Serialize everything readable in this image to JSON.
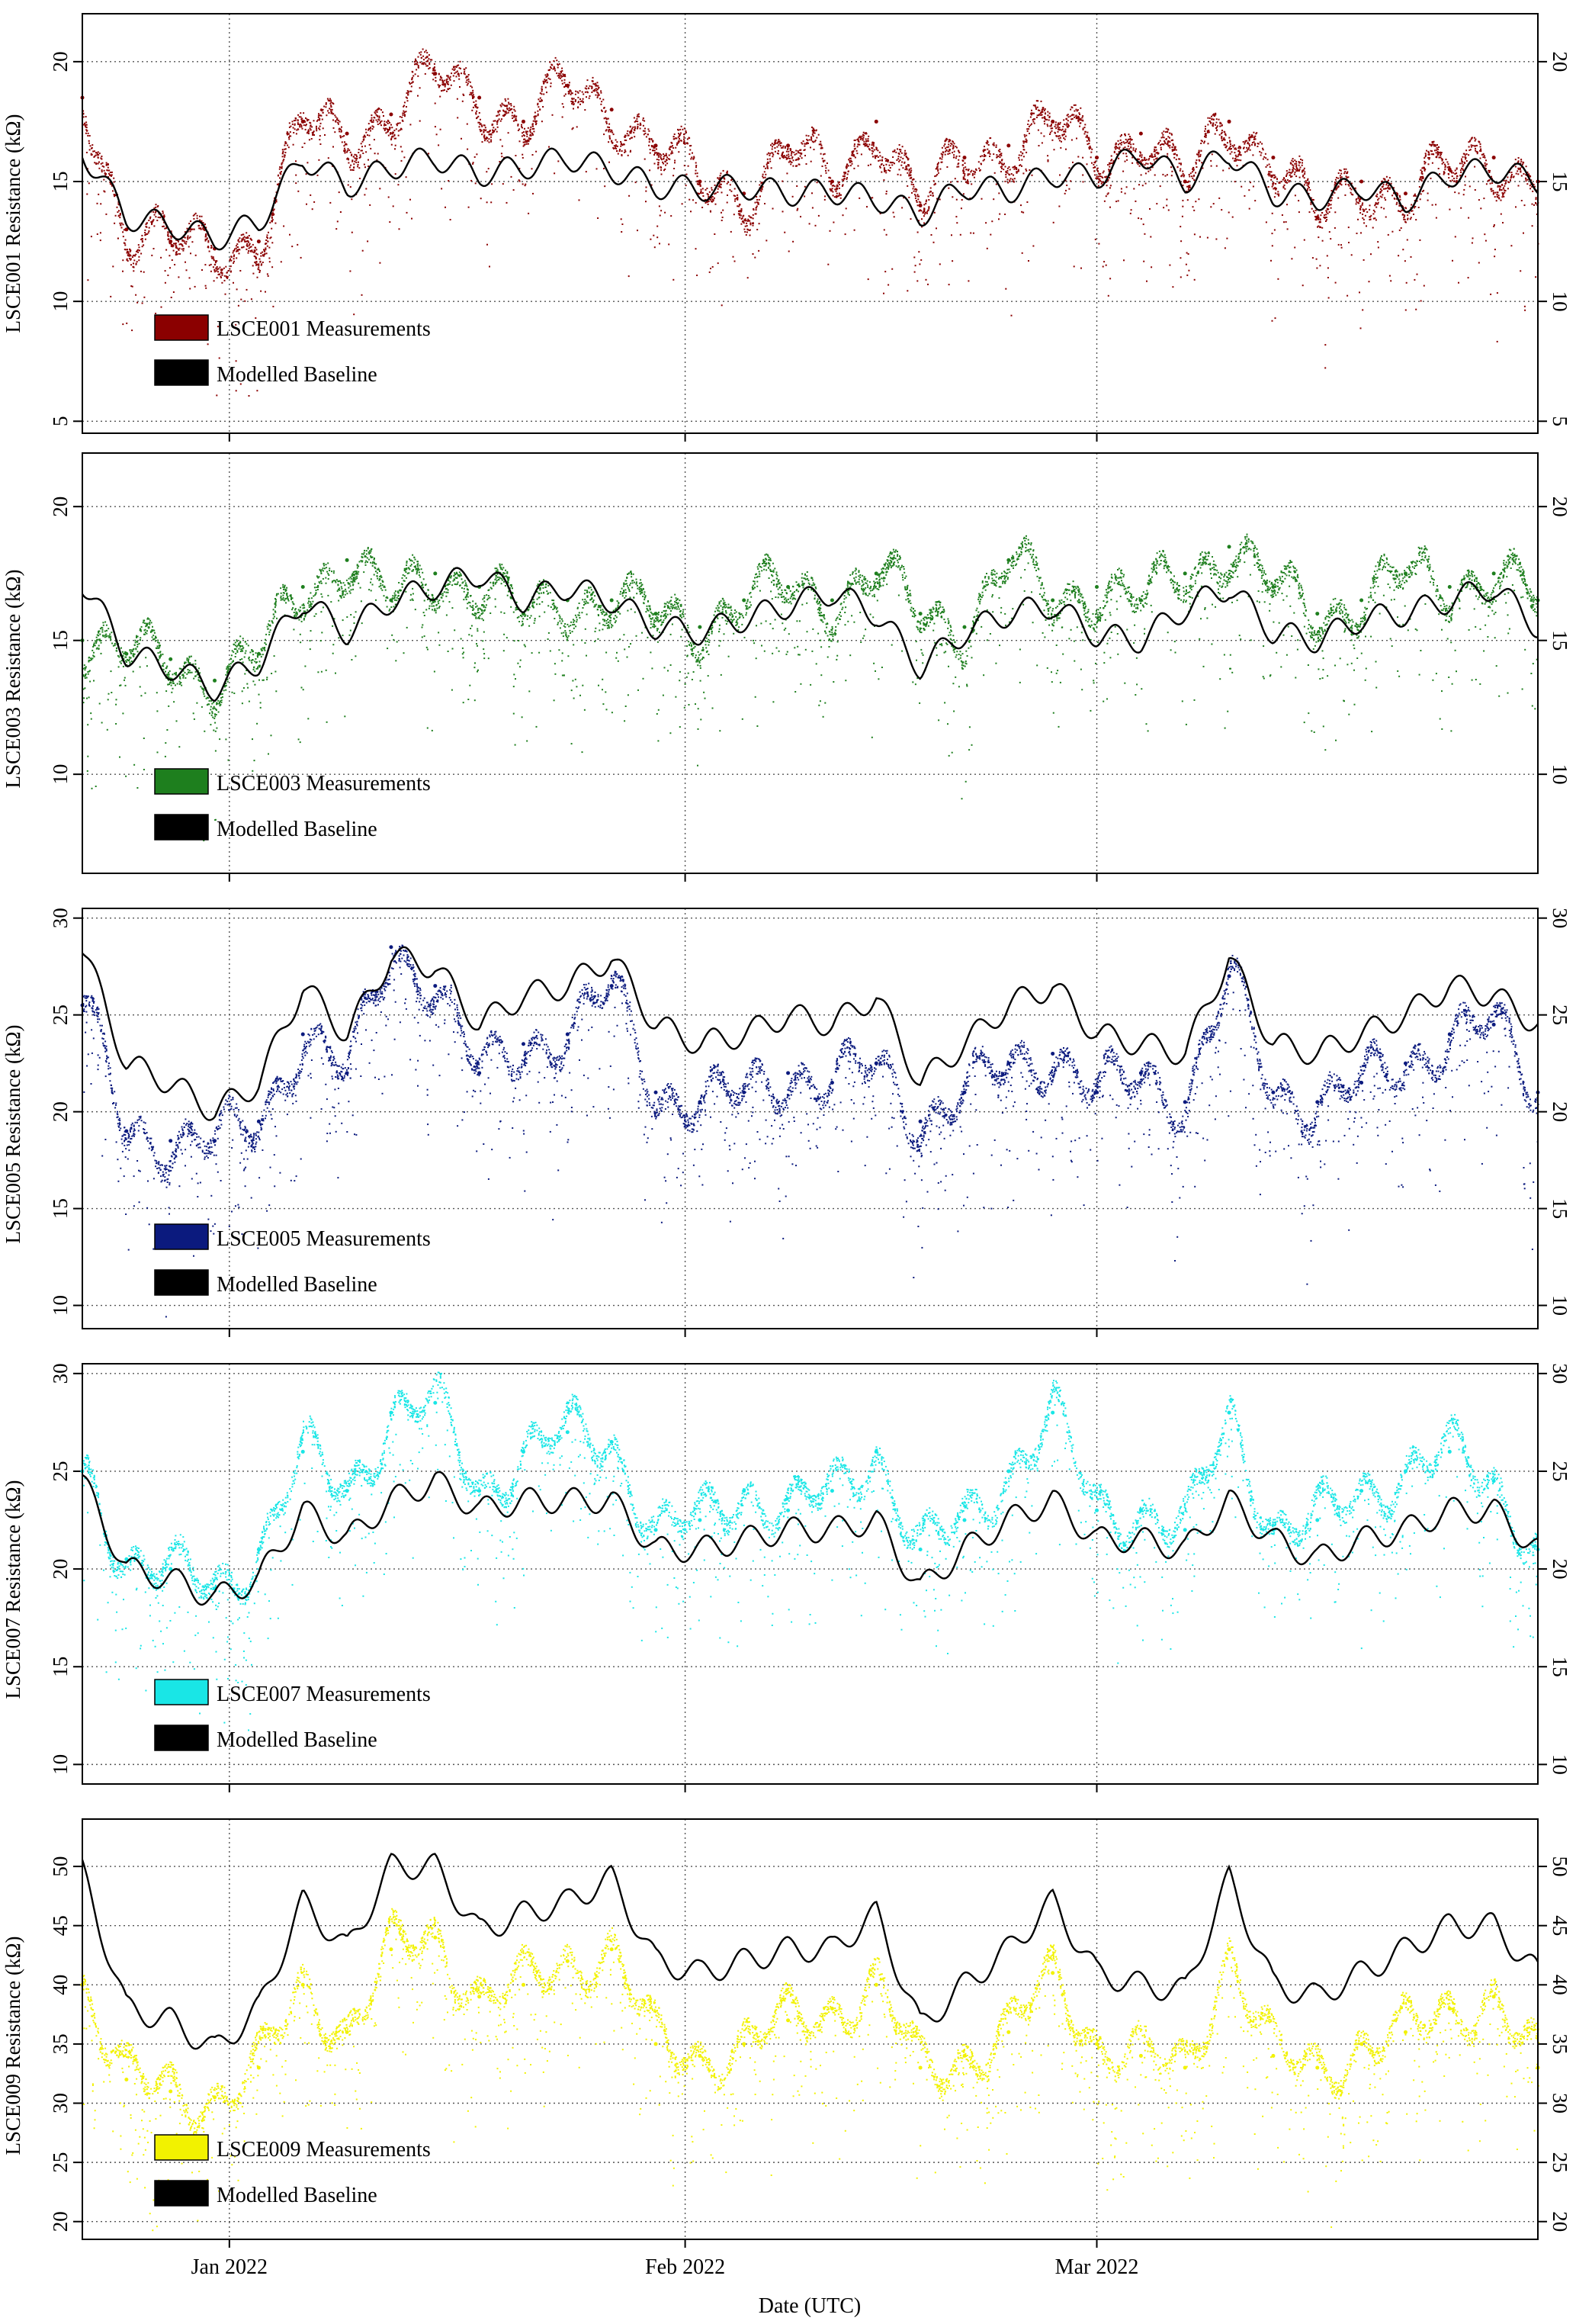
{
  "figure": {
    "xlabel": "Date (UTC)"
  },
  "chart_data": [
    {
      "type": "line",
      "id": "p1",
      "ylabel": "LSCE001 Resistance (kΩ)",
      "ylim": [
        4.5,
        22
      ],
      "yticks": [
        5,
        10,
        15,
        20
      ],
      "xlim": [
        "2021-12-22",
        "2022-03-31"
      ],
      "xticks": [
        "2022-01-01",
        "2022-02-01",
        "2022-03-01"
      ],
      "xtick_labels": [
        "Jan 2022",
        "Feb 2022",
        "Mar 2022"
      ],
      "grid": true,
      "legend_position": "bottom-left",
      "series": [
        {
          "name": "LSCE001 Measurements",
          "color": "#8B0000",
          "style": "points",
          "x": [
            "2021-12-22",
            "2021-12-25",
            "2021-12-28",
            "2021-12-31",
            "2022-01-03",
            "2022-01-06",
            "2022-01-09",
            "2022-01-12",
            "2022-01-15",
            "2022-01-18",
            "2022-01-21",
            "2022-01-24",
            "2022-01-27",
            "2022-01-30",
            "2022-02-02",
            "2022-02-05",
            "2022-02-08",
            "2022-02-11",
            "2022-02-14",
            "2022-02-17",
            "2022-02-20",
            "2022-02-23",
            "2022-02-26",
            "2022-03-01",
            "2022-03-04",
            "2022-03-07",
            "2022-03-10",
            "2022-03-13",
            "2022-03-16",
            "2022-03-19",
            "2022-03-22",
            "2022-03-25",
            "2022-03-28",
            "2022-03-31"
          ],
          "y": [
            18.5,
            13,
            12.5,
            12.2,
            12.5,
            17.5,
            17,
            17.8,
            19.5,
            18.5,
            17.5,
            19,
            18,
            16.5,
            15,
            14.5,
            16.5,
            15,
            17.5,
            14,
            16,
            16.5,
            17.5,
            16,
            17,
            15,
            17.5,
            16,
            13.5,
            15,
            14.5,
            15.5,
            16,
            15
          ]
        },
        {
          "name": "Modelled Baseline",
          "color": "#000000",
          "style": "line",
          "x": [
            "2021-12-22",
            "2021-12-25",
            "2021-12-28",
            "2021-12-31",
            "2022-01-03",
            "2022-01-06",
            "2022-01-09",
            "2022-01-12",
            "2022-01-15",
            "2022-01-18",
            "2022-01-21",
            "2022-01-24",
            "2022-01-27",
            "2022-01-30",
            "2022-02-02",
            "2022-02-05",
            "2022-02-08",
            "2022-02-11",
            "2022-02-14",
            "2022-02-17",
            "2022-02-20",
            "2022-02-23",
            "2022-02-26",
            "2022-03-01",
            "2022-03-04",
            "2022-03-07",
            "2022-03-10",
            "2022-03-13",
            "2022-03-16",
            "2022-03-19",
            "2022-03-22",
            "2022-03-25",
            "2022-03-28",
            "2022-03-31"
          ],
          "y": [
            16.3,
            13.5,
            13.2,
            12.6,
            13.3,
            16,
            14.8,
            15.6,
            16,
            15.3,
            15.6,
            16,
            15.5,
            14.8,
            14.7,
            14.8,
            14.5,
            14.6,
            14.3,
            13.6,
            14.8,
            14.6,
            15.3,
            15.2,
            16.2,
            15,
            16.2,
            14.5,
            14.3,
            14.8,
            14.2,
            15.3,
            15.5,
            15
          ]
        }
      ]
    },
    {
      "type": "line",
      "id": "p2",
      "ylabel": "LSCE003 Resistance (kΩ)",
      "ylim": [
        6.3,
        22
      ],
      "yticks": [
        10,
        15,
        20
      ],
      "xlim": [
        "2021-12-22",
        "2022-03-31"
      ],
      "xticks": [
        "2022-01-01",
        "2022-02-01",
        "2022-03-01"
      ],
      "xtick_labels": [
        "Jan 2022",
        "Feb 2022",
        "Mar 2022"
      ],
      "grid": true,
      "legend_position": "bottom-left",
      "series": [
        {
          "name": "LSCE003 Measurements",
          "color": "#1E7F1E",
          "style": "points",
          "x": [
            "2021-12-22",
            "2021-12-25",
            "2021-12-28",
            "2021-12-31",
            "2022-01-03",
            "2022-01-06",
            "2022-01-09",
            "2022-01-12",
            "2022-01-15",
            "2022-01-18",
            "2022-01-21",
            "2022-01-24",
            "2022-01-27",
            "2022-01-30",
            "2022-02-02",
            "2022-02-05",
            "2022-02-08",
            "2022-02-11",
            "2022-02-14",
            "2022-02-17",
            "2022-02-20",
            "2022-02-23",
            "2022-02-26",
            "2022-03-01",
            "2022-03-04",
            "2022-03-07",
            "2022-03-10",
            "2022-03-13",
            "2022-03-16",
            "2022-03-19",
            "2022-03-22",
            "2022-03-25",
            "2022-03-28",
            "2022-03-31"
          ],
          "y": [
            15,
            14.5,
            14.3,
            13.5,
            14.5,
            17,
            18,
            16.5,
            17.5,
            17,
            16,
            16.5,
            16.5,
            16,
            15.5,
            16.5,
            17,
            16.5,
            17.5,
            16,
            15.5,
            18,
            16.5,
            17,
            16.5,
            17.5,
            18.5,
            17,
            16,
            16.5,
            17.5,
            17,
            17.5,
            16.5
          ]
        },
        {
          "name": "Modelled Baseline",
          "color": "#000000",
          "style": "line",
          "x": [
            "2021-12-22",
            "2021-12-25",
            "2021-12-28",
            "2021-12-31",
            "2022-01-03",
            "2022-01-06",
            "2022-01-09",
            "2022-01-12",
            "2022-01-15",
            "2022-01-18",
            "2022-01-21",
            "2022-01-24",
            "2022-01-27",
            "2022-01-30",
            "2022-02-02",
            "2022-02-05",
            "2022-02-08",
            "2022-02-11",
            "2022-02-14",
            "2022-02-17",
            "2022-02-20",
            "2022-02-23",
            "2022-02-26",
            "2022-03-01",
            "2022-03-04",
            "2022-03-07",
            "2022-03-10",
            "2022-03-13",
            "2022-03-16",
            "2022-03-19",
            "2022-03-22",
            "2022-03-25",
            "2022-03-28",
            "2022-03-31"
          ],
          "y": [
            17.2,
            14.5,
            14,
            13.2,
            14.2,
            16.5,
            15.3,
            16.5,
            17,
            17.5,
            16.5,
            17,
            16.5,
            15.5,
            15.3,
            15.8,
            16.3,
            16.8,
            16,
            14,
            15.3,
            16,
            16.3,
            15.2,
            15,
            16.2,
            17,
            15.3,
            15,
            15.8,
            16,
            16.5,
            17,
            15.5
          ]
        }
      ]
    },
    {
      "type": "line",
      "id": "p3",
      "ylabel": "LSCE005 Resistance (kΩ)",
      "ylim": [
        8.8,
        30.5
      ],
      "yticks": [
        10,
        15,
        20,
        25,
        30
      ],
      "xlim": [
        "2021-12-22",
        "2022-03-31"
      ],
      "xticks": [
        "2022-01-01",
        "2022-02-01",
        "2022-03-01"
      ],
      "xtick_labels": [
        "Jan 2022",
        "Feb 2022",
        "Mar 2022"
      ],
      "grid": true,
      "legend_position": "bottom-left",
      "series": [
        {
          "name": "LSCE005 Measurements",
          "color": "#0B1A7E",
          "style": "points",
          "x": [
            "2021-12-22",
            "2021-12-25",
            "2021-12-28",
            "2021-12-31",
            "2022-01-03",
            "2022-01-06",
            "2022-01-09",
            "2022-01-12",
            "2022-01-15",
            "2022-01-18",
            "2022-01-21",
            "2022-01-24",
            "2022-01-27",
            "2022-01-30",
            "2022-02-02",
            "2022-02-05",
            "2022-02-08",
            "2022-02-11",
            "2022-02-14",
            "2022-02-17",
            "2022-02-20",
            "2022-02-23",
            "2022-02-26",
            "2022-03-01",
            "2022-03-04",
            "2022-03-07",
            "2022-03-10",
            "2022-03-13",
            "2022-03-16",
            "2022-03-19",
            "2022-03-22",
            "2022-03-25",
            "2022-03-28",
            "2022-03-31"
          ],
          "y": [
            25.5,
            19,
            18.5,
            18.5,
            19.5,
            24,
            22,
            28.5,
            26.5,
            22,
            23.5,
            24,
            26.5,
            21,
            20.5,
            21,
            22,
            21.5,
            22.5,
            19.5,
            21,
            22.5,
            23,
            21,
            22,
            20.5,
            27,
            21,
            20.5,
            21.5,
            22.5,
            24,
            24.5,
            21
          ]
        },
        {
          "name": "Modelled Baseline",
          "color": "#000000",
          "style": "line",
          "x": [
            "2021-12-22",
            "2021-12-25",
            "2021-12-28",
            "2021-12-31",
            "2022-01-03",
            "2022-01-06",
            "2022-01-09",
            "2022-01-12",
            "2022-01-15",
            "2022-01-18",
            "2022-01-21",
            "2022-01-24",
            "2022-01-27",
            "2022-01-30",
            "2022-02-02",
            "2022-02-05",
            "2022-02-08",
            "2022-02-11",
            "2022-02-14",
            "2022-02-17",
            "2022-02-20",
            "2022-02-23",
            "2022-02-26",
            "2022-03-01",
            "2022-03-04",
            "2022-03-07",
            "2022-03-10",
            "2022-03-13",
            "2022-03-16",
            "2022-03-19",
            "2022-03-22",
            "2022-03-25",
            "2022-03-28",
            "2022-03-31"
          ],
          "y": [
            28.5,
            22.5,
            21.5,
            20,
            21.5,
            26.5,
            24,
            28,
            27.5,
            24.5,
            26,
            26.5,
            28,
            24.5,
            23.5,
            24,
            25,
            24.5,
            26,
            21.5,
            23.5,
            25.5,
            26.5,
            24,
            23.5,
            23,
            28,
            23.5,
            23,
            24,
            25,
            26.5,
            26,
            24.5
          ]
        }
      ]
    },
    {
      "type": "line",
      "id": "p4",
      "ylabel": "LSCE007 Resistance (kΩ)",
      "ylim": [
        9,
        30.5
      ],
      "yticks": [
        10,
        15,
        20,
        25,
        30
      ],
      "xlim": [
        "2021-12-22",
        "2022-03-31"
      ],
      "xticks": [
        "2022-01-01",
        "2022-02-01",
        "2022-03-01"
      ],
      "xtick_labels": [
        "Jan 2022",
        "Feb 2022",
        "Mar 2022"
      ],
      "grid": true,
      "legend_position": "bottom-left",
      "series": [
        {
          "name": "LSCE007 Measurements",
          "color": "#19E6E6",
          "style": "points",
          "x": [
            "2021-12-22",
            "2021-12-25",
            "2021-12-28",
            "2021-12-31",
            "2022-01-03",
            "2022-01-06",
            "2022-01-09",
            "2022-01-12",
            "2022-01-15",
            "2022-01-18",
            "2022-01-21",
            "2022-01-24",
            "2022-01-27",
            "2022-01-30",
            "2022-02-02",
            "2022-02-05",
            "2022-02-08",
            "2022-02-11",
            "2022-02-14",
            "2022-02-17",
            "2022-02-20",
            "2022-02-23",
            "2022-02-26",
            "2022-03-01",
            "2022-03-04",
            "2022-03-07",
            "2022-03-10",
            "2022-03-13",
            "2022-03-16",
            "2022-03-19",
            "2022-03-22",
            "2022-03-25",
            "2022-03-28",
            "2022-03-31"
          ],
          "y": [
            25,
            20.5,
            20,
            19,
            21,
            26,
            24,
            28,
            28.5,
            24,
            26,
            27,
            26.5,
            22,
            22.5,
            24,
            23,
            24,
            26,
            21,
            22.5,
            25,
            28,
            23,
            23,
            22,
            28,
            22,
            22.5,
            24,
            25,
            26,
            24.5,
            21
          ]
        },
        {
          "name": "Modelled Baseline",
          "color": "#000000",
          "style": "line",
          "x": [
            "2021-12-22",
            "2021-12-25",
            "2021-12-28",
            "2021-12-31",
            "2022-01-03",
            "2022-01-06",
            "2022-01-09",
            "2022-01-12",
            "2022-01-15",
            "2022-01-18",
            "2022-01-21",
            "2022-01-24",
            "2022-01-27",
            "2022-01-30",
            "2022-02-02",
            "2022-02-05",
            "2022-02-08",
            "2022-02-11",
            "2022-02-14",
            "2022-02-17",
            "2022-02-20",
            "2022-02-23",
            "2022-02-26",
            "2022-03-01",
            "2022-03-04",
            "2022-03-07",
            "2022-03-10",
            "2022-03-13",
            "2022-03-16",
            "2022-03-19",
            "2022-03-22",
            "2022-03-25",
            "2022-03-28",
            "2022-03-31"
          ],
          "y": [
            24.5,
            20,
            19.5,
            18.5,
            19.5,
            23,
            21.5,
            23.5,
            24.5,
            23,
            23.5,
            23.5,
            23.5,
            21,
            21,
            21.5,
            22,
            22,
            22.5,
            19,
            21,
            22.5,
            23.5,
            21.5,
            21.5,
            21,
            23.5,
            21.5,
            20.5,
            21.5,
            22,
            23,
            23,
            21
          ]
        }
      ]
    },
    {
      "type": "line",
      "id": "p5",
      "ylabel": "LSCE009 Resistance (kΩ)",
      "ylim": [
        18.5,
        54
      ],
      "yticks": [
        20,
        25,
        30,
        35,
        40,
        45,
        50
      ],
      "xlim": [
        "2021-12-22",
        "2022-03-31"
      ],
      "xticks": [
        "2022-01-01",
        "2022-02-01",
        "2022-03-01"
      ],
      "xtick_labels": [
        "Jan 2022",
        "Feb 2022",
        "Mar 2022"
      ],
      "grid": true,
      "legend_position": "bottom-left",
      "series": [
        {
          "name": "LSCE009 Measurements",
          "color": "#F2F200",
          "style": "points",
          "x": [
            "2021-12-22",
            "2021-12-25",
            "2021-12-28",
            "2021-12-31",
            "2022-01-03",
            "2022-01-06",
            "2022-01-09",
            "2022-01-12",
            "2022-01-15",
            "2022-01-18",
            "2022-01-21",
            "2022-01-24",
            "2022-01-27",
            "2022-01-30",
            "2022-02-02",
            "2022-02-05",
            "2022-02-08",
            "2022-02-11",
            "2022-02-14",
            "2022-02-17",
            "2022-02-20",
            "2022-02-23",
            "2022-02-26",
            "2022-03-01",
            "2022-03-04",
            "2022-03-07",
            "2022-03-10",
            "2022-03-13",
            "2022-03-16",
            "2022-03-19",
            "2022-03-22",
            "2022-03-25",
            "2022-03-28",
            "2022-03-31"
          ],
          "y": [
            40,
            32,
            31,
            30.5,
            33,
            40,
            36,
            43,
            44,
            39,
            40,
            42,
            43,
            35,
            34,
            35,
            37,
            38,
            40,
            33,
            34,
            36,
            41,
            35,
            34,
            33,
            43,
            34,
            33,
            35,
            36,
            38,
            39,
            33
          ]
        },
        {
          "name": "Modelled Baseline",
          "color": "#000000",
          "style": "line",
          "x": [
            "2021-12-22",
            "2021-12-25",
            "2021-12-28",
            "2021-12-31",
            "2022-01-03",
            "2022-01-06",
            "2022-01-09",
            "2022-01-12",
            "2022-01-15",
            "2022-01-18",
            "2022-01-21",
            "2022-01-24",
            "2022-01-27",
            "2022-01-30",
            "2022-02-02",
            "2022-02-05",
            "2022-02-08",
            "2022-02-11",
            "2022-02-14",
            "2022-02-17",
            "2022-02-20",
            "2022-02-23",
            "2022-02-26",
            "2022-03-01",
            "2022-03-04",
            "2022-03-07",
            "2022-03-10",
            "2022-03-13",
            "2022-03-16",
            "2022-03-19",
            "2022-03-22",
            "2022-03-25",
            "2022-03-28",
            "2022-03-31"
          ],
          "y": [
            49.5,
            38,
            37,
            34.5,
            38,
            47,
            43,
            50,
            50,
            44.5,
            46,
            47,
            49,
            42,
            41,
            42,
            43,
            43,
            46,
            36.5,
            40,
            43,
            47,
            41,
            40,
            39.5,
            49,
            40,
            39,
            41,
            43,
            45,
            45,
            41
          ]
        }
      ]
    }
  ]
}
